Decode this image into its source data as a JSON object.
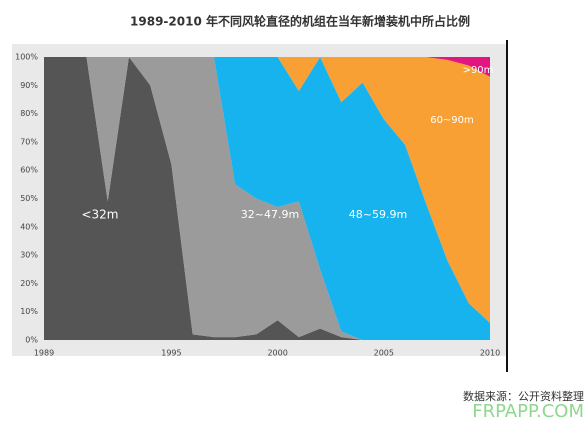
{
  "chart_data": {
    "type": "stacked-area",
    "title": "1989-2010 年不同风轮直径的机组在当年新增装机中所占比例",
    "source": "数据来源：公开资料整理",
    "watermark": "FRPAPP.COM",
    "x": [
      1989,
      1990,
      1991,
      1992,
      1993,
      1994,
      1995,
      1996,
      1997,
      1998,
      1999,
      2000,
      2001,
      2002,
      2003,
      2004,
      2005,
      2006,
      2007,
      2008,
      2009,
      2010
    ],
    "xlim": [
      1989,
      2010
    ],
    "xticks": [
      1989,
      1995,
      2000,
      2005,
      2010
    ],
    "ylim": [
      0,
      100
    ],
    "yticks": [
      {
        "value": 0,
        "label": "0%"
      },
      {
        "value": 10,
        "label": "10%"
      },
      {
        "value": 20,
        "label": "20%"
      },
      {
        "value": 30,
        "label": "30%"
      },
      {
        "value": 40,
        "label": "40%"
      },
      {
        "value": 50,
        "label": "50%"
      },
      {
        "value": 60,
        "label": "60%"
      },
      {
        "value": 70,
        "label": "70%"
      },
      {
        "value": 80,
        "label": "80%"
      },
      {
        "value": 90,
        "label": "90%"
      },
      {
        "value": 100,
        "label": "100%"
      }
    ],
    "grid": false,
    "series": [
      {
        "name": "<32m",
        "color": "#555555",
        "values": [
          100,
          100,
          100,
          49,
          100,
          90,
          62,
          2,
          1,
          1,
          2,
          7,
          1,
          4,
          1,
          0,
          0,
          0,
          0,
          0,
          0,
          0
        ]
      },
      {
        "name": "32~47.9m",
        "color": "#9b9b9b",
        "values": [
          0,
          0,
          0,
          51,
          0,
          10,
          38,
          98,
          99,
          54,
          48,
          40,
          48,
          21,
          2,
          0,
          0,
          0,
          0,
          0,
          0,
          0
        ]
      },
      {
        "name": "48~59.9m",
        "color": "#17b3ee",
        "values": [
          0,
          0,
          0,
          0,
          0,
          0,
          0,
          0,
          0,
          45,
          50,
          53,
          39,
          75,
          81,
          91,
          78,
          69,
          48,
          28,
          13,
          6
        ]
      },
      {
        "name": "60~90m",
        "color": "#f8a033",
        "values": [
          0,
          0,
          0,
          0,
          0,
          0,
          0,
          0,
          0,
          0,
          0,
          0,
          12,
          0,
          16,
          9,
          22,
          31,
          52,
          71,
          84,
          87
        ]
      },
      {
        "name": ">90m",
        "color": "#e2167e",
        "values": [
          0,
          0,
          0,
          0,
          0,
          0,
          0,
          0,
          0,
          0,
          0,
          0,
          0,
          0,
          0,
          0,
          0,
          0,
          0,
          1,
          3,
          7
        ]
      }
    ]
  }
}
